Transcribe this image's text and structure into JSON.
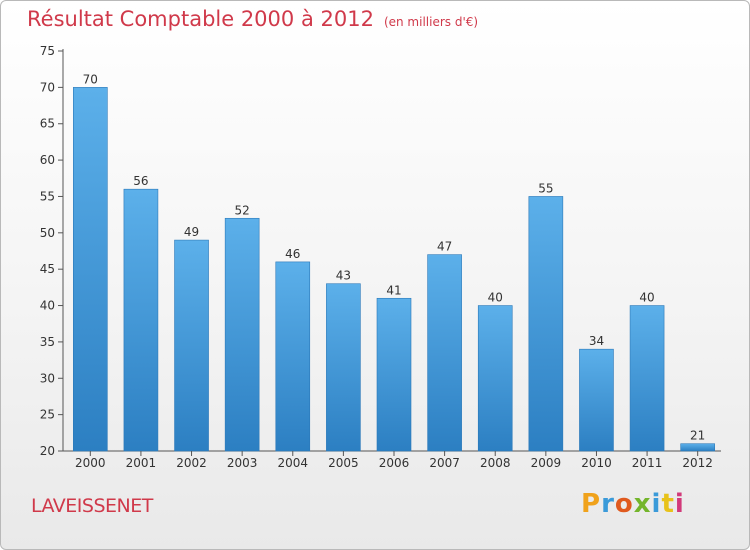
{
  "title": "Résultat Comptable 2000 à 2012",
  "unit": "(en milliers d'€)",
  "commune": "LAVEISSENET",
  "logo_text": "Proxiti",
  "colors": {
    "bar": "#3f97d8",
    "bar_light": "#5cb0ea",
    "title": "#d0394a"
  },
  "chart_data": {
    "type": "bar",
    "title": "Résultat Comptable 2000 à 2012",
    "xlabel": "",
    "ylabel": "",
    "categories": [
      "2000",
      "2001",
      "2002",
      "2003",
      "2004",
      "2005",
      "2006",
      "2007",
      "2008",
      "2009",
      "2010",
      "2011",
      "2012"
    ],
    "values": [
      70,
      56,
      49,
      52,
      46,
      43,
      41,
      47,
      40,
      55,
      34,
      40,
      21
    ],
    "ylim": [
      20,
      75
    ],
    "yticks": [
      20,
      25,
      30,
      35,
      40,
      45,
      50,
      55,
      60,
      65,
      70,
      75
    ],
    "grid": false,
    "data_labels": true
  }
}
